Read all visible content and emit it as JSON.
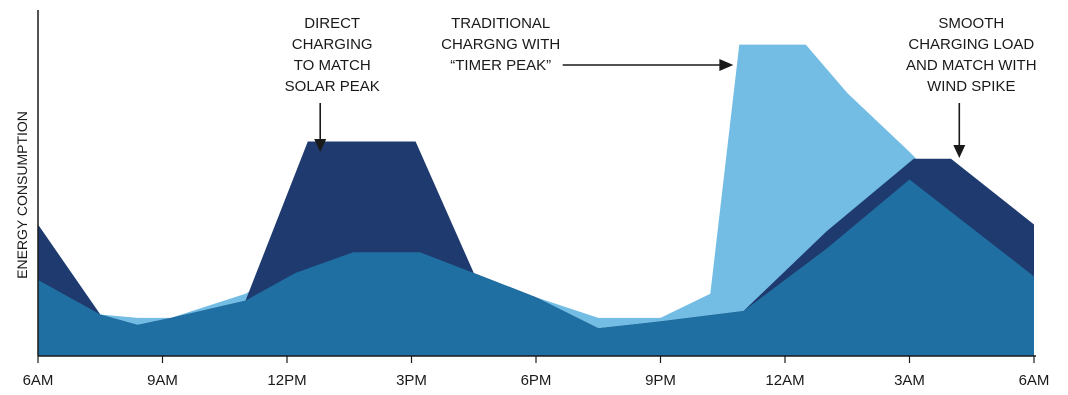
{
  "chart_data": {
    "type": "area",
    "title": "",
    "xlabel": "",
    "ylabel": "ENERGY CONSUMPTION",
    "x_range": [
      0,
      24
    ],
    "y_range": [
      0,
      100
    ],
    "ticks": [
      {
        "x": 0,
        "label": "6AM"
      },
      {
        "x": 3,
        "label": "9AM"
      },
      {
        "x": 6,
        "label": "12PM"
      },
      {
        "x": 9,
        "label": "3PM"
      },
      {
        "x": 12,
        "label": "6PM"
      },
      {
        "x": 15,
        "label": "9PM"
      },
      {
        "x": 18,
        "label": "12AM"
      },
      {
        "x": 21,
        "label": "3AM"
      },
      {
        "x": 24,
        "label": "6AM"
      }
    ],
    "series": [
      {
        "color": "#73bde5",
        "points": [
          [
            0,
            38
          ],
          [
            1.5,
            12
          ],
          [
            2.4,
            11
          ],
          [
            3.2,
            11
          ],
          [
            5,
            18
          ],
          [
            6.2,
            26
          ],
          [
            7.6,
            33
          ],
          [
            9.2,
            33
          ],
          [
            10.5,
            24
          ],
          [
            12,
            17
          ],
          [
            13.5,
            11
          ],
          [
            15,
            11
          ],
          [
            16.2,
            18
          ],
          [
            16.9,
            90
          ],
          [
            18.5,
            90
          ],
          [
            19.5,
            76
          ],
          [
            21,
            59
          ],
          [
            24,
            22
          ]
        ]
      },
      {
        "color": "#1e3a6e",
        "points": [
          [
            0,
            38
          ],
          [
            1.5,
            12
          ],
          [
            2.4,
            9
          ],
          [
            3.2,
            11
          ],
          [
            5,
            16
          ],
          [
            6.5,
            62
          ],
          [
            9.1,
            62
          ],
          [
            10.5,
            24
          ],
          [
            12,
            17
          ],
          [
            13.5,
            8
          ],
          [
            15,
            10
          ],
          [
            17,
            13
          ],
          [
            19,
            36
          ],
          [
            21.1,
            57
          ],
          [
            22,
            57
          ],
          [
            24,
            38
          ]
        ]
      },
      {
        "color": "#1f6fa2",
        "points": [
          [
            0,
            22
          ],
          [
            1.5,
            12
          ],
          [
            2.4,
            9
          ],
          [
            3.2,
            11
          ],
          [
            5,
            16
          ],
          [
            6.2,
            24
          ],
          [
            7.6,
            30
          ],
          [
            9.2,
            30
          ],
          [
            10.5,
            24
          ],
          [
            12,
            17
          ],
          [
            13.5,
            8
          ],
          [
            15,
            10
          ],
          [
            17,
            13
          ],
          [
            19,
            31
          ],
          [
            21,
            51
          ],
          [
            24,
            23
          ]
        ]
      }
    ],
    "annotations": [
      {
        "lines": [
          "DIRECT",
          "CHARGING",
          "TO MATCH",
          "SOLAR PEAK"
        ],
        "anchor_x": 6.8,
        "arrow": "down"
      },
      {
        "lines": [
          "TRADITIONAL",
          "CHARGNG WITH",
          "“TIMER PEAK”"
        ],
        "anchor_x": 15.8,
        "arrow": "right"
      },
      {
        "lines": [
          "SMOOTH",
          "CHARGING LOAD",
          "AND MATCH WITH",
          "WIND SPIKE"
        ],
        "anchor_x": 22.2,
        "arrow": "down"
      }
    ]
  }
}
